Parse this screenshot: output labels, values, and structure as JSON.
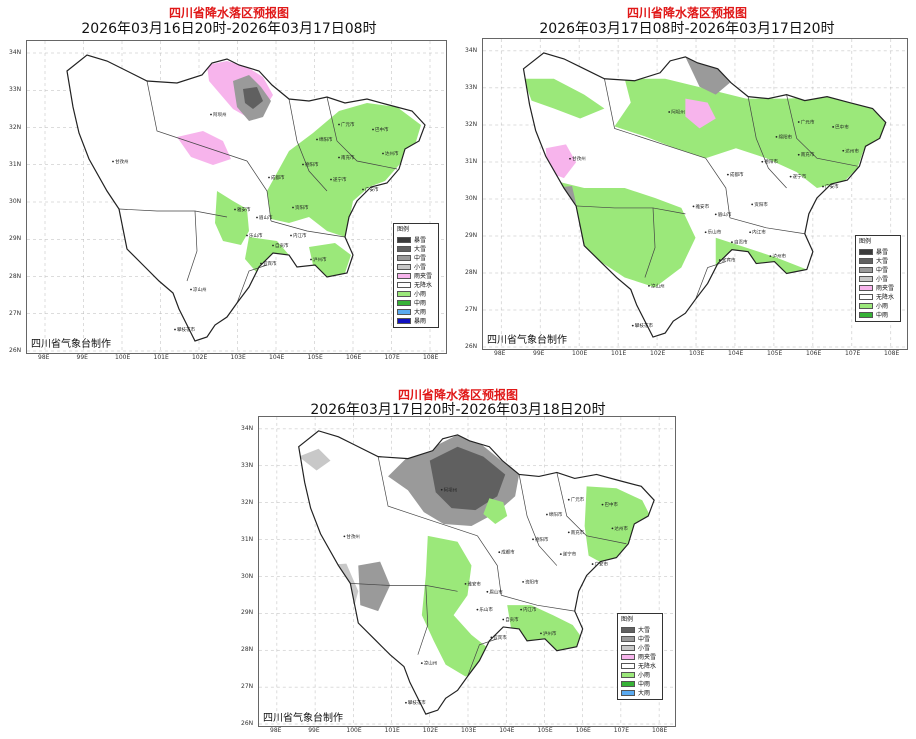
{
  "colors": {
    "xiaoyu": "#9be87a",
    "zhongyu": "#36b236",
    "dayu": "#5aaaf0",
    "baoyu": "#1010c0",
    "baoxue": "#3a3a3a",
    "daxue": "#606060",
    "zhongxue": "#9a9a9a",
    "xiaoxue": "#c8c8c8",
    "yujiaxue": "#f7b4ec",
    "wujiangshui": "#ffffff",
    "boundary": "#222222",
    "title_red": "#e01818"
  },
  "lat_labels": [
    "34N",
    "33N",
    "32N",
    "31N",
    "30N",
    "29N",
    "28N",
    "27N",
    "26N"
  ],
  "lon_labels": [
    "98E",
    "99E",
    "100E",
    "101E",
    "102E",
    "103E",
    "104E",
    "105E",
    "106E",
    "107E",
    "108E"
  ],
  "cities": [
    "阿坝州",
    "广元市",
    "巴中市",
    "绵阳市",
    "德阳市",
    "南充市",
    "达州市",
    "甘孜州",
    "成都市",
    "遂宁市",
    "广安市",
    "雅安市",
    "眉山市",
    "资阳市",
    "内江市",
    "乐山市",
    "自贡市",
    "宜宾市",
    "泸州市",
    "凉山州",
    "攀枝花市"
  ],
  "maps": [
    {
      "title": "四川省降水落区预报图",
      "period": "2026年03月16日20时-2026年03月17日08时",
      "credit": "四川省气象台制作",
      "legend": {
        "title": "图例",
        "items": [
          {
            "label": "暴雪",
            "color": "#3a3a3a"
          },
          {
            "label": "大雪",
            "color": "#606060"
          },
          {
            "label": "中雪",
            "color": "#9a9a9a"
          },
          {
            "label": "小雪",
            "color": "#c8c8c8"
          },
          {
            "label": "雨夹雪",
            "color": "#f7b4ec"
          },
          {
            "label": "无降水",
            "color": "#ffffff"
          },
          {
            "label": "小雨",
            "color": "#9be87a"
          },
          {
            "label": "中雨",
            "color": "#36b236"
          },
          {
            "label": "大雨",
            "color": "#5aaaf0"
          },
          {
            "label": "暴雨",
            "color": "#1010c0"
          }
        ]
      }
    },
    {
      "title": "四川省降水落区预报图",
      "period": "2026年03月17日08时-2026年03月17日20时",
      "credit": "四川省气象台制作",
      "legend": {
        "title": "图例",
        "items": [
          {
            "label": "暴雪",
            "color": "#3a3a3a"
          },
          {
            "label": "大雪",
            "color": "#606060"
          },
          {
            "label": "中雪",
            "color": "#9a9a9a"
          },
          {
            "label": "小雪",
            "color": "#c8c8c8"
          },
          {
            "label": "雨夹雪",
            "color": "#f7b4ec"
          },
          {
            "label": "无降水",
            "color": "#ffffff"
          },
          {
            "label": "小雨",
            "color": "#9be87a"
          },
          {
            "label": "中雨",
            "color": "#36b236"
          }
        ]
      }
    },
    {
      "title": "四川省降水落区预报图",
      "period": "2026年03月17日20时-2026年03月18日20时",
      "credit": "四川省气象台制作",
      "legend": {
        "title": "图例",
        "items": [
          {
            "label": "大雪",
            "color": "#606060"
          },
          {
            "label": "中雪",
            "color": "#9a9a9a"
          },
          {
            "label": "小雪",
            "color": "#c8c8c8"
          },
          {
            "label": "雨夹雪",
            "color": "#f7b4ec"
          },
          {
            "label": "无降水",
            "color": "#ffffff"
          },
          {
            "label": "小雨",
            "color": "#9be87a"
          },
          {
            "label": "中雨",
            "color": "#36b236"
          },
          {
            "label": "大雨",
            "color": "#5aaaf0"
          }
        ]
      }
    }
  ]
}
